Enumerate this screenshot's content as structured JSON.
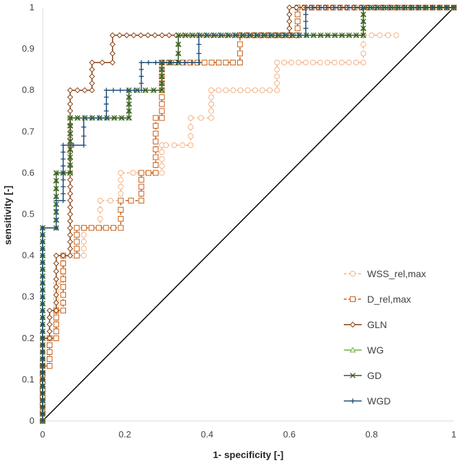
{
  "chart_data": {
    "type": "line",
    "title": "",
    "xlabel": "1- specificity [-]",
    "ylabel": "sensitivity [-]",
    "xlim": [
      0,
      1
    ],
    "ylim": [
      0,
      1
    ],
    "x_ticks": [
      "0",
      "0.2",
      "0.4",
      "0.6",
      "0.8",
      "1"
    ],
    "y_ticks": [
      "0",
      "0.1",
      "0.2",
      "0.3",
      "0.4",
      "0.5",
      "0.6",
      "0.7",
      "0.8",
      "0.9",
      "1"
    ],
    "grid": false,
    "legend_position": "right",
    "reference_line": {
      "x": [
        0,
        1
      ],
      "y": [
        0,
        1
      ],
      "color": "#000000"
    },
    "series": [
      {
        "name": "WSS_rel,max",
        "color": "#F4B183",
        "dashed": true,
        "marker": "circle",
        "x": [
          0,
          0,
          0.033,
          0.033,
          0.05,
          0.05,
          0.1,
          0.1,
          0.14,
          0.14,
          0.19,
          0.19,
          0.22,
          0.22,
          0.29,
          0.29,
          0.3,
          0.3,
          0.36,
          0.36,
          0.41,
          0.41,
          0.57,
          0.57,
          0.78,
          0.78,
          0.86
        ],
        "y": [
          0,
          0.2,
          0.2,
          0.333,
          0.333,
          0.4,
          0.4,
          0.467,
          0.467,
          0.533,
          0.533,
          0.6,
          0.6,
          0.6,
          0.6,
          0.667,
          0.667,
          0.667,
          0.667,
          0.733,
          0.733,
          0.8,
          0.8,
          0.867,
          0.867,
          0.933,
          0.933
        ]
      },
      {
        "name": "D_rel,max",
        "color": "#C55A11",
        "dashed": true,
        "marker": "square",
        "x": [
          0,
          0,
          0.017,
          0.017,
          0.033,
          0.033,
          0.05,
          0.05,
          0.083,
          0.083,
          0.19,
          0.19,
          0.24,
          0.24,
          0.275,
          0.275,
          0.29,
          0.29,
          0.48,
          0.48,
          0.62,
          0.62,
          1.0
        ],
        "y": [
          0,
          0.133,
          0.133,
          0.2,
          0.2,
          0.267,
          0.267,
          0.4,
          0.4,
          0.467,
          0.467,
          0.533,
          0.533,
          0.6,
          0.6,
          0.733,
          0.733,
          0.867,
          0.867,
          0.933,
          0.933,
          1.0,
          1.0
        ]
      },
      {
        "name": "GLN",
        "color": "#843C0C",
        "dashed": false,
        "marker": "diamond",
        "x": [
          0,
          0,
          0.017,
          0.017,
          0.033,
          0.033,
          0.067,
          0.067,
          0.12,
          0.12,
          0.17,
          0.17,
          0.6,
          0.6,
          1.0
        ],
        "y": [
          0,
          0.2,
          0.2,
          0.267,
          0.267,
          0.4,
          0.4,
          0.8,
          0.8,
          0.867,
          0.867,
          0.933,
          0.933,
          1.0,
          1.0
        ]
      },
      {
        "name": "WG",
        "color": "#70AD47",
        "dashed": false,
        "marker": "triangle",
        "x": [
          0,
          0,
          0.033,
          0.033,
          0.067,
          0.067,
          0.21,
          0.21,
          0.29,
          0.29,
          0.33,
          0.33,
          0.78,
          0.78,
          1.0
        ],
        "y": [
          0,
          0.467,
          0.467,
          0.6,
          0.6,
          0.733,
          0.733,
          0.8,
          0.8,
          0.867,
          0.867,
          0.933,
          0.933,
          1.0,
          1.0
        ]
      },
      {
        "name": "GD",
        "color": "#375623",
        "dashed": false,
        "marker": "x",
        "x": [
          0,
          0,
          0.033,
          0.033,
          0.067,
          0.067,
          0.21,
          0.21,
          0.29,
          0.29,
          0.33,
          0.33,
          0.78,
          0.78,
          1.0
        ],
        "y": [
          0,
          0.467,
          0.467,
          0.6,
          0.6,
          0.733,
          0.733,
          0.8,
          0.8,
          0.867,
          0.867,
          0.933,
          0.933,
          1.0,
          1.0
        ]
      },
      {
        "name": "WGD",
        "color": "#1F4E79",
        "dashed": false,
        "marker": "plus",
        "x": [
          0,
          0,
          0.033,
          0.033,
          0.05,
          0.05,
          0.1,
          0.1,
          0.155,
          0.155,
          0.24,
          0.24,
          0.38,
          0.38,
          0.64,
          0.64,
          1.0
        ],
        "y": [
          0,
          0.467,
          0.467,
          0.533,
          0.533,
          0.667,
          0.667,
          0.733,
          0.733,
          0.8,
          0.8,
          0.867,
          0.867,
          0.933,
          0.933,
          1.0,
          1.0
        ]
      }
    ]
  }
}
